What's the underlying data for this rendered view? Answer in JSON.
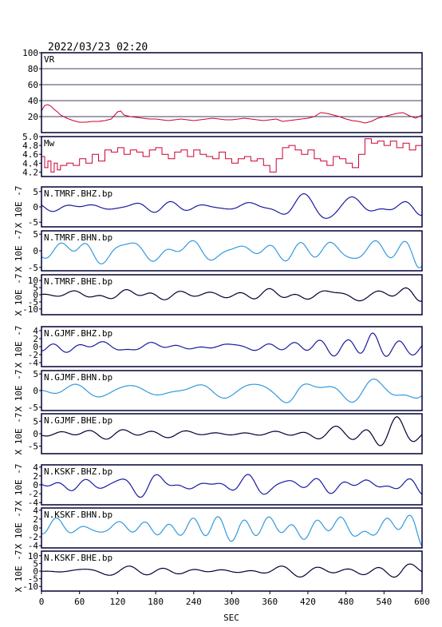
{
  "header": {
    "timestamp": "2022/03/23 02:20"
  },
  "x_axis": {
    "label": "SEC",
    "ticks": [
      "0",
      "60",
      "120",
      "180",
      "240",
      "300",
      "360",
      "420",
      "480",
      "540",
      "600"
    ],
    "range": [
      0,
      600
    ]
  },
  "colors": {
    "frame": "#000033",
    "vr_mw": "#cc0033",
    "bhz": "#1a1aa0",
    "bhn": "#3399dd",
    "bhe": "#000033"
  },
  "chart_data": [
    {
      "type": "line",
      "panel": "vr",
      "title": "VR",
      "ylim": [
        0,
        100
      ],
      "tick_labels": [
        "100",
        "80",
        "60",
        "40",
        "20"
      ],
      "tick_values": [
        100,
        80,
        60,
        40,
        20
      ],
      "series": [
        {
          "color": "#cc0033",
          "x": [
            0,
            5,
            10,
            15,
            20,
            25,
            30,
            40,
            50,
            60,
            70,
            80,
            90,
            100,
            110,
            120,
            125,
            130,
            140,
            150,
            160,
            170,
            180,
            190,
            200,
            210,
            220,
            230,
            240,
            250,
            260,
            270,
            280,
            290,
            300,
            310,
            320,
            330,
            340,
            350,
            360,
            370,
            380,
            390,
            400,
            410,
            420,
            430,
            440,
            450,
            460,
            470,
            480,
            490,
            500,
            510,
            520,
            530,
            540,
            550,
            560,
            570,
            580,
            590,
            600
          ],
          "values": [
            27,
            34,
            35,
            33,
            29,
            26,
            22,
            18,
            15,
            13,
            13,
            14,
            14,
            15,
            17,
            26,
            27,
            22,
            20,
            19,
            18,
            17,
            17,
            16,
            15,
            16,
            17,
            16,
            15,
            16,
            17,
            18,
            17,
            16,
            16,
            17,
            18,
            17,
            16,
            15,
            16,
            17,
            14,
            15,
            16,
            17,
            18,
            20,
            25,
            24,
            22,
            20,
            17,
            15,
            14,
            12,
            14,
            18,
            20,
            22,
            24,
            25,
            21,
            18,
            22
          ]
        }
      ]
    },
    {
      "type": "line",
      "panel": "mw",
      "title": "Mw",
      "ylim": [
        4.1,
        5.0
      ],
      "tick_labels": [
        "5.0",
        "4.8",
        "4.6",
        "4.4",
        "4.2"
      ],
      "tick_values": [
        5.0,
        4.8,
        4.6,
        4.4,
        4.2
      ],
      "series": [
        {
          "color": "#cc0033",
          "x": [
            0,
            5,
            10,
            15,
            20,
            25,
            30,
            40,
            50,
            60,
            70,
            80,
            90,
            100,
            110,
            120,
            130,
            140,
            150,
            160,
            170,
            180,
            190,
            200,
            210,
            220,
            230,
            240,
            250,
            260,
            270,
            280,
            290,
            300,
            310,
            320,
            330,
            340,
            350,
            360,
            370,
            380,
            390,
            400,
            410,
            420,
            430,
            440,
            450,
            460,
            470,
            480,
            490,
            500,
            510,
            520,
            530,
            540,
            550,
            560,
            570,
            580,
            590,
            600
          ],
          "values": [
            4.55,
            4.3,
            4.45,
            4.2,
            4.4,
            4.25,
            4.35,
            4.4,
            4.35,
            4.5,
            4.4,
            4.6,
            4.45,
            4.7,
            4.65,
            4.75,
            4.6,
            4.7,
            4.65,
            4.55,
            4.7,
            4.75,
            4.6,
            4.5,
            4.65,
            4.7,
            4.55,
            4.7,
            4.6,
            4.55,
            4.5,
            4.65,
            4.5,
            4.4,
            4.5,
            4.55,
            4.45,
            4.5,
            4.35,
            4.2,
            4.5,
            4.75,
            4.8,
            4.7,
            4.6,
            4.7,
            4.5,
            4.45,
            4.35,
            4.55,
            4.5,
            4.4,
            4.3,
            4.6,
            4.95,
            4.85,
            4.9,
            4.8,
            4.9,
            4.75,
            4.85,
            4.7,
            4.8,
            4.75
          ]
        }
      ]
    },
    {
      "type": "line",
      "panel": "wave",
      "title": "N.TMRF.BHZ.bp",
      "color": "#1a1aa0",
      "amp": 6.5,
      "tick_labels": [
        "5",
        "0",
        "-5"
      ],
      "tick_values": [
        5,
        0,
        -5
      ],
      "unit_label": "X 10E -7",
      "seed": 11,
      "envelope": [
        [
          0,
          0.55
        ],
        [
          100,
          0.6
        ],
        [
          160,
          0.75
        ],
        [
          300,
          0.55
        ],
        [
          420,
          0.7
        ],
        [
          480,
          0.85
        ],
        [
          540,
          1.0
        ],
        [
          600,
          1.0
        ]
      ]
    },
    {
      "type": "line",
      "panel": "wave",
      "title": "N.TMRF.BHN.bp",
      "color": "#3399dd",
      "amp": 6,
      "tick_labels": [
        "5",
        "0",
        "-5"
      ],
      "tick_values": [
        5,
        0,
        -5
      ],
      "unit_label": "X 10E -7",
      "seed": 23,
      "envelope": [
        [
          0,
          0.6
        ],
        [
          60,
          0.95
        ],
        [
          120,
          0.55
        ],
        [
          300,
          0.55
        ],
        [
          420,
          0.7
        ],
        [
          560,
          0.75
        ],
        [
          590,
          1.0
        ],
        [
          600,
          1.0
        ]
      ]
    },
    {
      "type": "line",
      "panel": "wave",
      "title": "N.TMRF.BHE.bp",
      "color": "#000033",
      "amp": 14,
      "tick_labels": [
        "10",
        "5",
        "0",
        "-5",
        "-10"
      ],
      "tick_values": [
        10,
        5,
        0,
        -5,
        -10
      ],
      "unit_label": "X 10E -7",
      "seed": 37,
      "envelope": [
        [
          0,
          0.25
        ],
        [
          120,
          0.35
        ],
        [
          300,
          0.28
        ],
        [
          480,
          0.4
        ],
        [
          530,
          1.0
        ],
        [
          560,
          0.9
        ],
        [
          600,
          0.6
        ]
      ]
    },
    {
      "type": "line",
      "panel": "wave",
      "title": "N.GJMF.BHZ.bp",
      "color": "#1a1aa0",
      "amp": 5,
      "tick_labels": [
        "4",
        "2",
        "0",
        "-2",
        "-4"
      ],
      "tick_values": [
        4,
        2,
        0,
        -2,
        -4
      ],
      "unit_label": "X 10E -7",
      "seed": 41,
      "envelope": [
        [
          0,
          0.45
        ],
        [
          300,
          0.4
        ],
        [
          480,
          0.5
        ],
        [
          520,
          1.0
        ],
        [
          550,
          0.8
        ],
        [
          600,
          0.6
        ]
      ]
    },
    {
      "type": "line",
      "panel": "wave",
      "title": "N.GJMF.BHN.bp",
      "color": "#3399dd",
      "amp": 6,
      "tick_labels": [
        "5",
        "0",
        "-5"
      ],
      "tick_values": [
        5,
        0,
        -5
      ],
      "unit_label": "X 10E -7",
      "seed": 53,
      "envelope": [
        [
          0,
          0.4
        ],
        [
          300,
          0.4
        ],
        [
          370,
          0.55
        ],
        [
          400,
          1.0
        ],
        [
          430,
          0.6
        ],
        [
          540,
          0.65
        ],
        [
          570,
          0.9
        ],
        [
          600,
          0.9
        ]
      ]
    },
    {
      "type": "line",
      "panel": "wave",
      "title": "N.GJMF.BHE.bp",
      "color": "#000033",
      "amp": 8,
      "tick_labels": [
        "5",
        "0",
        "-5"
      ],
      "tick_values": [
        5,
        0,
        -5
      ],
      "unit_label": "X 10E -7",
      "seed": 67,
      "envelope": [
        [
          0,
          0.2
        ],
        [
          120,
          0.3
        ],
        [
          300,
          0.25
        ],
        [
          480,
          0.45
        ],
        [
          530,
          0.9
        ],
        [
          560,
          1.0
        ],
        [
          600,
          0.7
        ]
      ]
    },
    {
      "type": "line",
      "panel": "wave",
      "title": "N.KSKF.BHZ.bp",
      "color": "#1a1aa0",
      "amp": 4.5,
      "tick_labels": [
        "4",
        "2",
        "0",
        "-2",
        "-4"
      ],
      "tick_values": [
        4,
        2,
        0,
        -2,
        -4
      ],
      "unit_label": "X 10E -7",
      "seed": 71,
      "envelope": [
        [
          0,
          0.5
        ],
        [
          200,
          0.7
        ],
        [
          300,
          0.6
        ],
        [
          420,
          0.75
        ],
        [
          500,
          0.8
        ],
        [
          550,
          1.0
        ],
        [
          600,
          0.85
        ]
      ]
    },
    {
      "type": "line",
      "panel": "wave",
      "title": "N.KSKF.BHN.bp",
      "color": "#3399dd",
      "amp": 4.5,
      "tick_labels": [
        "4",
        "2",
        "0",
        "-2",
        "-4"
      ],
      "tick_values": [
        4,
        2,
        0,
        -2,
        -4
      ],
      "unit_label": "X 10E -7",
      "seed": 83,
      "envelope": [
        [
          0,
          0.75
        ],
        [
          100,
          0.85
        ],
        [
          180,
          0.9
        ],
        [
          300,
          0.7
        ],
        [
          420,
          0.75
        ],
        [
          540,
          0.9
        ],
        [
          600,
          1.0
        ]
      ]
    },
    {
      "type": "line",
      "panel": "wave",
      "title": "N.KSKF.BHE.bp",
      "color": "#000033",
      "amp": 13,
      "tick_labels": [
        "10",
        "5",
        "0",
        "-5",
        "-10"
      ],
      "tick_values": [
        10,
        5,
        0,
        -5,
        -10
      ],
      "unit_label": "X 10E -7",
      "seed": 97,
      "envelope": [
        [
          0,
          0.25
        ],
        [
          200,
          0.35
        ],
        [
          300,
          0.25
        ],
        [
          480,
          0.35
        ],
        [
          540,
          0.8
        ],
        [
          570,
          1.0
        ],
        [
          600,
          0.5
        ]
      ]
    }
  ]
}
